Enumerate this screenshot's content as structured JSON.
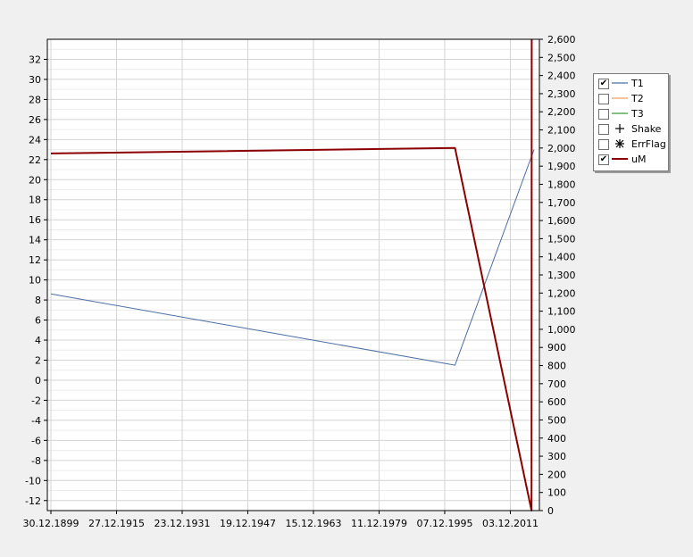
{
  "chart_data": {
    "type": "line",
    "title": "",
    "xlabel": "",
    "ylabel_left": "",
    "ylabel_right": "",
    "x_tick_labels": [
      "30.12.1899",
      "27.12.1915",
      "23.12.1931",
      "19.12.1947",
      "15.12.1963",
      "11.12.1979",
      "07.12.1995",
      "03.12.2011"
    ],
    "y_left": {
      "min": -13,
      "max": 34,
      "ticks": [
        -12,
        -10,
        -8,
        -6,
        -4,
        -2,
        0,
        2,
        4,
        6,
        8,
        10,
        12,
        14,
        16,
        18,
        20,
        22,
        24,
        26,
        28,
        30,
        32
      ]
    },
    "y_right": {
      "min": 0,
      "max": 2600,
      "ticks": [
        "0",
        "100",
        "200",
        "300",
        "400",
        "500",
        "600",
        "700",
        "800",
        "900",
        "1,000",
        "1,100",
        "1,200",
        "1,300",
        "1,400",
        "1,500",
        "1,600",
        "1,700",
        "1,800",
        "1,900",
        "2,000",
        "2,100",
        "2,200",
        "2,300",
        "2,400",
        "2,500",
        "2,600"
      ]
    },
    "grid": true,
    "legend_position": "right",
    "series": [
      {
        "name": "T1",
        "axis": "left",
        "color": "#4a6fa5",
        "checked": true,
        "x": [
          "30.12.1899",
          "10.06.1998",
          "10.09.2017"
        ],
        "y": [
          8.6,
          1.5,
          23
        ]
      },
      {
        "name": "T2",
        "axis": "left",
        "color": "#f0a060",
        "checked": false,
        "x": [],
        "y": []
      },
      {
        "name": "T3",
        "axis": "left",
        "color": "#3a9a3a",
        "checked": false,
        "x": [],
        "y": []
      },
      {
        "name": "Shake",
        "axis": "left",
        "color": "#000000",
        "checked": false,
        "marker": "plus",
        "x": [],
        "y": []
      },
      {
        "name": "ErrFlag",
        "axis": "left",
        "color": "#000000",
        "checked": false,
        "marker": "asterisk",
        "x": [],
        "y": []
      },
      {
        "name": "uM",
        "axis": "right",
        "color": "#8b0000",
        "checked": true,
        "x": [
          "30.12.1899",
          "10.06.1998",
          "01.02.2017",
          "15.02.2017"
        ],
        "y": [
          1970,
          2000,
          0,
          2600
        ]
      }
    ]
  }
}
